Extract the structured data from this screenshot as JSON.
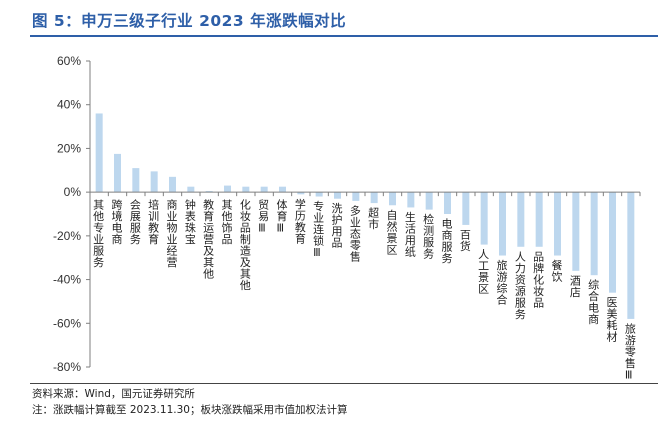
{
  "header": {
    "title": "图 5：申万三级子行业 2023 年涨跌幅对比"
  },
  "footer": {
    "source": "资料来源：Wind，国元证券研究所",
    "note": "注：涨跌幅计算截至 2023.11.30；板块涨跌幅采用市值加权法计算"
  },
  "colors": {
    "bar": "#BDD7EE",
    "title": "#2E5FA8",
    "axis": "#7F7F7F"
  },
  "chart_data": {
    "type": "bar",
    "title": "",
    "xlabel": "",
    "ylabel": "",
    "ylim": [
      -80,
      60
    ],
    "yticks": [
      60,
      40,
      20,
      0,
      -20,
      -40,
      -60,
      -80
    ],
    "ytick_labels": [
      "60%",
      "40%",
      "20%",
      "0%",
      "-20%",
      "-40%",
      "-60%",
      "-80%"
    ],
    "unit": "%",
    "grid": false,
    "legend": "none",
    "categories": [
      "其他专业服务",
      "跨境电商",
      "会展服务",
      "培训教育",
      "商业物业经营",
      "钟表珠宝",
      "教育运营及其他",
      "其他饰品",
      "化妆品制造及其他",
      "贸易Ⅲ",
      "体育Ⅲ",
      "学历教育",
      "专业连锁Ⅲ",
      "洗护用品",
      "多业态零售",
      "超市",
      "自然景区",
      "生活用纸",
      "检测服务",
      "电商服务",
      "百货",
      "人工景区",
      "旅游综合",
      "人力资源服务",
      "品牌化妆品",
      "餐饮",
      "酒店",
      "综合电商",
      "医美耗材",
      "旅游零售Ⅲ"
    ],
    "values": [
      36,
      17.5,
      11,
      9.5,
      7,
      2.5,
      0.5,
      3,
      2.5,
      2.5,
      2.5,
      -1,
      -2,
      -3,
      -4,
      -5,
      -6,
      -7,
      -8,
      -10,
      -15,
      -24,
      -29,
      -25,
      -25,
      -29,
      -36,
      -38,
      -46,
      -58
    ]
  }
}
